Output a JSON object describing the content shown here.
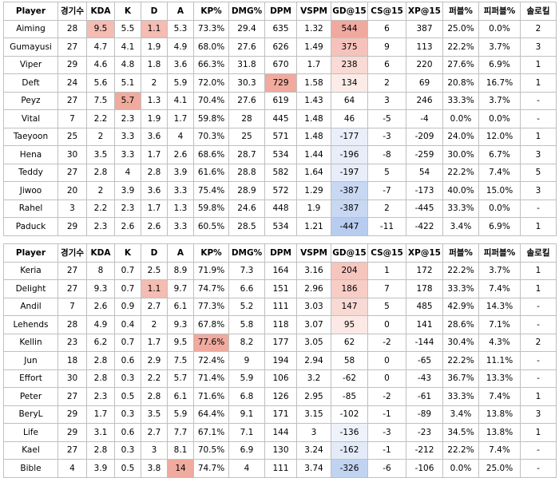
{
  "tables": [
    {
      "header": [
        "Player",
        "경기수",
        "KDA",
        "K",
        "D",
        "A",
        "KP%",
        "DMG%",
        "DPM",
        "VSPM",
        "GD@15",
        "CS@15",
        "XP@15",
        "퍼블%",
        "피퍼블%",
        "솔로킬"
      ],
      "rows": [
        [
          "Aiming",
          "28",
          "9.5",
          "5.5",
          "1.1",
          "5.3",
          "73.3%",
          "29.4",
          "635",
          "1.32",
          "544",
          "6",
          "387",
          "25.0%",
          "0.0%",
          "2"
        ],
        [
          "Gumayusi",
          "27",
          "4.7",
          "4.1",
          "1.9",
          "4.9",
          "68.0%",
          "27.6",
          "626",
          "1.49",
          "375",
          "9",
          "113",
          "22.2%",
          "3.7%",
          "3"
        ],
        [
          "Viper",
          "29",
          "4.6",
          "4.8",
          "1.8",
          "3.6",
          "66.3%",
          "31.8",
          "670",
          "1.7",
          "238",
          "6",
          "220",
          "27.6%",
          "6.9%",
          "1"
        ],
        [
          "Deft",
          "24",
          "5.6",
          "5.1",
          "2",
          "5.9",
          "72.0%",
          "30.3",
          "729",
          "1.58",
          "134",
          "2",
          "69",
          "20.8%",
          "16.7%",
          "1"
        ],
        [
          "Peyz",
          "27",
          "7.5",
          "5.7",
          "1.3",
          "4.1",
          "70.4%",
          "27.6",
          "619",
          "1.43",
          "64",
          "3",
          "246",
          "33.3%",
          "3.7%",
          "-"
        ],
        [
          "Vital",
          "7",
          "2.2",
          "2.3",
          "1.9",
          "1.7",
          "59.8%",
          "28",
          "445",
          "1.48",
          "46",
          "-5",
          "-4",
          "0.0%",
          "0.0%",
          "-"
        ],
        [
          "Taeyoon",
          "25",
          "2",
          "3.3",
          "3.6",
          "4",
          "70.3%",
          "25",
          "571",
          "1.48",
          "-177",
          "-3",
          "-209",
          "24.0%",
          "12.0%",
          "1"
        ],
        [
          "Hena",
          "30",
          "3.5",
          "3.3",
          "1.7",
          "2.6",
          "68.6%",
          "28.7",
          "534",
          "1.44",
          "-196",
          "-8",
          "-259",
          "30.0%",
          "6.7%",
          "3"
        ],
        [
          "Teddy",
          "27",
          "2.8",
          "4",
          "2.8",
          "3.9",
          "61.6%",
          "28.8",
          "582",
          "1.64",
          "-197",
          "5",
          "54",
          "22.2%",
          "7.4%",
          "5"
        ],
        [
          "Jiwoo",
          "20",
          "2",
          "3.9",
          "3.6",
          "3.3",
          "75.4%",
          "28.9",
          "572",
          "1.29",
          "-387",
          "-7",
          "-173",
          "40.0%",
          "15.0%",
          "3"
        ],
        [
          "Rahel",
          "3",
          "2.2",
          "2.3",
          "1.7",
          "1.3",
          "59.8%",
          "24.6",
          "448",
          "1.9",
          "-387",
          "2",
          "-445",
          "33.3%",
          "0.0%",
          "-"
        ],
        [
          "Paduck",
          "29",
          "2.3",
          "2.6",
          "2.6",
          "3.3",
          "60.5%",
          "28.5",
          "534",
          "1.21",
          "-447",
          "-11",
          "-422",
          "3.4%",
          "6.9%",
          "1"
        ]
      ]
    },
    {
      "header": [
        "Player",
        "경기수",
        "KDA",
        "K",
        "D",
        "A",
        "KP%",
        "DMG%",
        "DPM",
        "VSPM",
        "GD@15",
        "CS@15",
        "XP@15",
        "퍼블%",
        "피퍼블%",
        "솔로킬"
      ],
      "rows": [
        [
          "Keria",
          "27",
          "8",
          "0.7",
          "2.5",
          "8.9",
          "71.9%",
          "7.3",
          "164",
          "3.16",
          "204",
          "1",
          "172",
          "22.2%",
          "3.7%",
          "1"
        ],
        [
          "Delight",
          "27",
          "9.3",
          "0.7",
          "1.1",
          "9.7",
          "74.7%",
          "6.6",
          "151",
          "2.96",
          "186",
          "7",
          "178",
          "33.3%",
          "7.4%",
          "1"
        ],
        [
          "Andil",
          "7",
          "2.6",
          "0.9",
          "2.7",
          "6.1",
          "77.3%",
          "5.2",
          "111",
          "3.03",
          "147",
          "5",
          "485",
          "42.9%",
          "14.3%",
          "-"
        ],
        [
          "Lehends",
          "28",
          "4.9",
          "0.4",
          "2",
          "9.3",
          "67.8%",
          "5.8",
          "118",
          "3.07",
          "95",
          "0",
          "141",
          "28.6%",
          "7.1%",
          "-"
        ],
        [
          "Kellin",
          "23",
          "6.2",
          "0.7",
          "1.7",
          "9.5",
          "77.6%",
          "8.2",
          "177",
          "3.05",
          "62",
          "-2",
          "-144",
          "30.4%",
          "4.3%",
          "2"
        ],
        [
          "Jun",
          "18",
          "2.8",
          "0.6",
          "2.9",
          "7.5",
          "72.4%",
          "9",
          "194",
          "2.94",
          "58",
          "0",
          "-65",
          "22.2%",
          "11.1%",
          "-"
        ],
        [
          "Effort",
          "30",
          "2.8",
          "0.3",
          "2.2",
          "5.7",
          "71.4%",
          "5.9",
          "106",
          "3.2",
          "-62",
          "0",
          "-43",
          "36.7%",
          "13.3%",
          "-"
        ],
        [
          "Peter",
          "27",
          "2.3",
          "0.5",
          "2.8",
          "6.1",
          "71.6%",
          "6.8",
          "126",
          "2.95",
          "-85",
          "-2",
          "-61",
          "33.3%",
          "7.4%",
          "1"
        ],
        [
          "BeryL",
          "29",
          "1.7",
          "0.3",
          "3.5",
          "5.9",
          "64.4%",
          "9.1",
          "171",
          "3.15",
          "-102",
          "-1",
          "-89",
          "3.4%",
          "13.8%",
          "3"
        ],
        [
          "Life",
          "29",
          "3.1",
          "0.6",
          "2.7",
          "7.7",
          "67.1%",
          "7.1",
          "144",
          "3",
          "-136",
          "-3",
          "-23",
          "34.5%",
          "13.8%",
          "1"
        ],
        [
          "Kael",
          "27",
          "2.8",
          "0.3",
          "3",
          "8.1",
          "70.5%",
          "6.9",
          "130",
          "3.24",
          "-162",
          "-1",
          "-212",
          "22.2%",
          "7.4%",
          "-"
        ],
        [
          "Bible",
          "4",
          "3.9",
          "0.5",
          "3.8",
          "14",
          "74.7%",
          "4",
          "111",
          "3.74",
          "-326",
          "-6",
          "-106",
          "0.0%",
          "25.0%",
          "-"
        ]
      ]
    }
  ]
}
